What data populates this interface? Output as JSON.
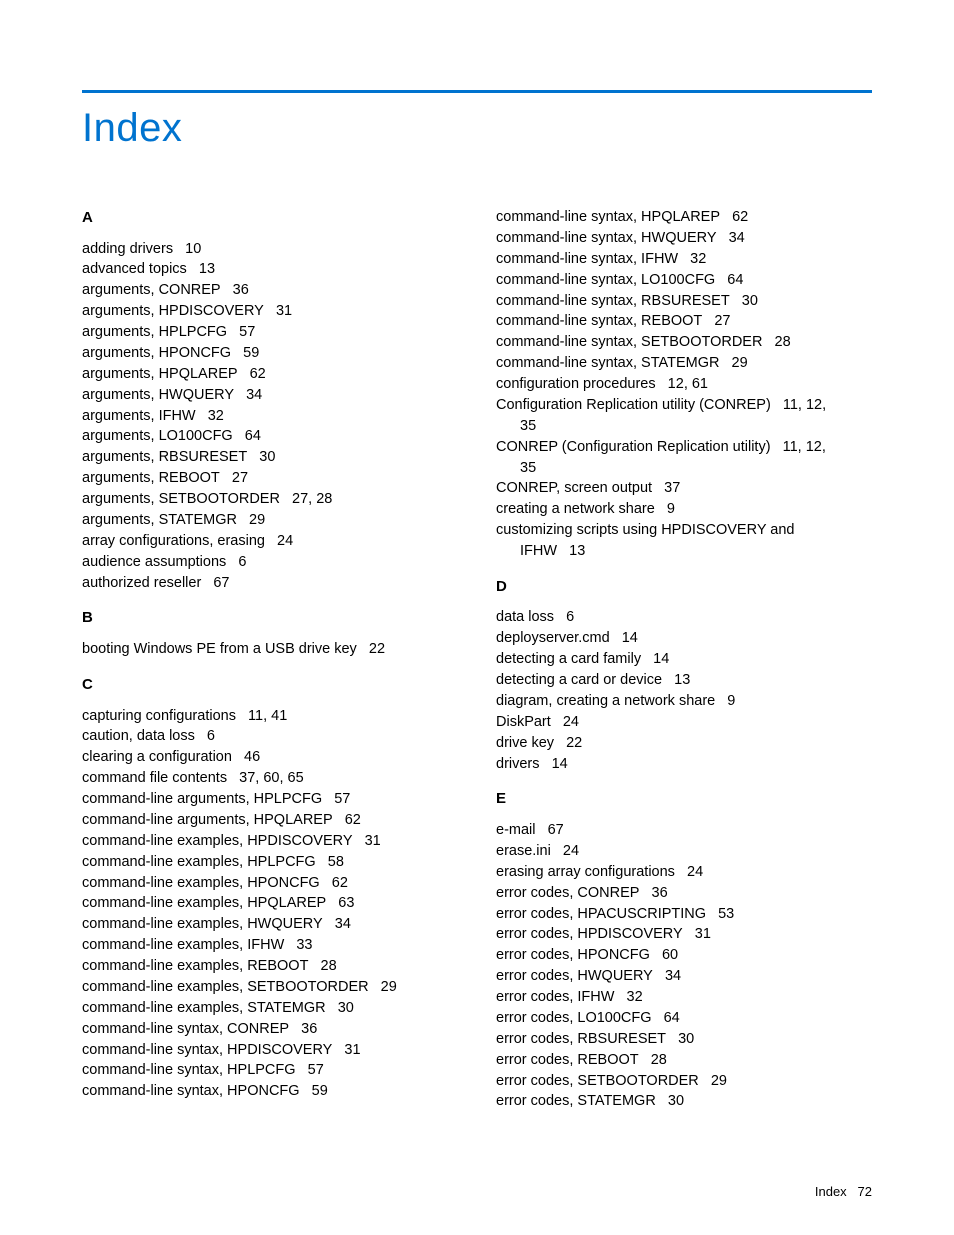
{
  "title": "Index",
  "footer": {
    "label": "Index",
    "page": "72"
  },
  "colors": {
    "accent": "#0073cf",
    "text": "#000000",
    "background": "#ffffff"
  },
  "typography": {
    "title_fontsize": 40,
    "body_fontsize": 14.5,
    "head_fontsize": 15,
    "footer_fontsize": 13
  },
  "left": {
    "A": {
      "head": "A",
      "entries": [
        "adding drivers   10",
        "advanced topics   13",
        "arguments, CONREP   36",
        "arguments, HPDISCOVERY   31",
        "arguments, HPLPCFG   57",
        "arguments, HPONCFG   59",
        "arguments, HPQLAREP   62",
        "arguments, HWQUERY   34",
        "arguments, IFHW   32",
        "arguments, LO100CFG   64",
        "arguments, RBSURESET   30",
        "arguments, REBOOT   27",
        "arguments, SETBOOTORDER   27, 28",
        "arguments, STATEMGR   29",
        "array configurations, erasing   24",
        "audience assumptions   6",
        "authorized reseller   67"
      ]
    },
    "B": {
      "head": "B",
      "entries": [
        "booting Windows PE from a USB drive key   22"
      ]
    },
    "C": {
      "head": "C",
      "entries": [
        "capturing configurations   11, 41",
        "caution, data loss   6",
        "clearing a configuration   46",
        "command file contents   37, 60, 65",
        "command-line arguments, HPLPCFG   57",
        "command-line arguments, HPQLAREP   62",
        "command-line examples, HPDISCOVERY   31",
        "command-line examples, HPLPCFG   58",
        "command-line examples, HPONCFG   62",
        "command-line examples, HPQLAREP   63",
        "command-line examples, HWQUERY   34",
        "command-line examples, IFHW   33",
        "command-line examples, REBOOT   28",
        "command-line examples, SETBOOTORDER   29",
        "command-line examples, STATEMGR   30",
        "command-line syntax, CONREP   36",
        "command-line syntax, HPDISCOVERY   31",
        "command-line syntax, HPLPCFG   57",
        "command-line syntax, HPONCFG   59"
      ]
    }
  },
  "right": {
    "Ccont": {
      "entries": [
        "command-line syntax, HPQLAREP   62",
        "command-line syntax, HWQUERY   34",
        "command-line syntax, IFHW   32",
        "command-line syntax, LO100CFG   64",
        "command-line syntax, RBSURESET   30",
        "command-line syntax, REBOOT   27",
        "command-line syntax, SETBOOTORDER   28",
        "command-line syntax, STATEMGR   29",
        "configuration procedures   12, 61"
      ],
      "wrap1_a": "Configuration Replication utility (CONREP)   11, 12,",
      "wrap1_b": "35",
      "wrap2_a": "CONREP (Configuration Replication utility)   11, 12,",
      "wrap2_b": "35",
      "entries2": [
        "CONREP, screen output   37",
        "creating a network share   9"
      ],
      "wrap3_a": "customizing scripts using HPDISCOVERY and",
      "wrap3_b": "IFHW   13"
    },
    "D": {
      "head": "D",
      "entries": [
        "data loss   6",
        "deployserver.cmd   14",
        "detecting a card family   14",
        "detecting a card or device   13",
        "diagram, creating a network share   9",
        "DiskPart   24",
        "drive key   22",
        "drivers   14"
      ]
    },
    "E": {
      "head": "E",
      "entries": [
        "e-mail   67",
        "erase.ini   24",
        "erasing array configurations   24",
        "error codes, CONREP   36",
        "error codes, HPACUSCRIPTING   53",
        "error codes, HPDISCOVERY   31",
        "error codes, HPONCFG   60",
        "error codes, HWQUERY   34",
        "error codes, IFHW   32",
        "error codes, LO100CFG   64",
        "error codes, RBSURESET   30",
        "error codes, REBOOT   28",
        "error codes, SETBOOTORDER   29",
        "error codes, STATEMGR   30"
      ]
    }
  }
}
